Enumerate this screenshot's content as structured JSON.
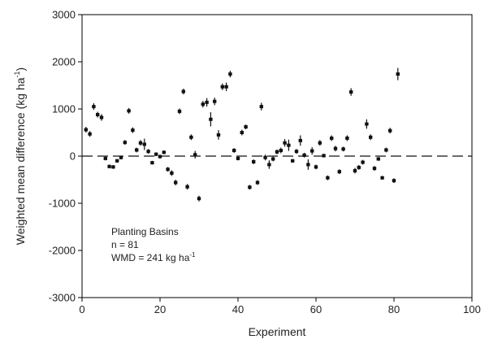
{
  "chart_data": {
    "type": "scatter",
    "xlabel": "Experiment",
    "ylabel": "Weighted mean difference (kg ha",
    "ylabel_sup": "-1",
    "ylabel_end": ")",
    "xlim": [
      0,
      100
    ],
    "ylim": [
      -3000,
      3000
    ],
    "x_ticks": [
      0,
      20,
      40,
      60,
      80,
      100
    ],
    "y_ticks": [
      -3000,
      -2000,
      -1000,
      0,
      1000,
      2000,
      3000
    ],
    "reference_line": {
      "y": 0,
      "style": "dashed"
    },
    "annotation": {
      "line1": "Planting Basins",
      "line2": "n = 81",
      "line3_prefix": "WMD = 241 kg ha",
      "line3_sup": "-1"
    },
    "points": [
      {
        "x": 1,
        "y": 560,
        "err": 60
      },
      {
        "x": 2,
        "y": 470,
        "err": 60
      },
      {
        "x": 3,
        "y": 1050,
        "err": 70
      },
      {
        "x": 4,
        "y": 880,
        "err": 60
      },
      {
        "x": 5,
        "y": 820,
        "err": 70
      },
      {
        "x": 6,
        "y": -50,
        "err": 40
      },
      {
        "x": 7,
        "y": -220,
        "err": 40
      },
      {
        "x": 8,
        "y": -230,
        "err": 40
      },
      {
        "x": 9,
        "y": -100,
        "err": 40
      },
      {
        "x": 10,
        "y": -30,
        "err": 40
      },
      {
        "x": 11,
        "y": 290,
        "err": 50
      },
      {
        "x": 12,
        "y": 960,
        "err": 60
      },
      {
        "x": 13,
        "y": 550,
        "err": 60
      },
      {
        "x": 14,
        "y": 130,
        "err": 50
      },
      {
        "x": 15,
        "y": 280,
        "err": 60
      },
      {
        "x": 16,
        "y": 250,
        "err": 120
      },
      {
        "x": 17,
        "y": 100,
        "err": 50
      },
      {
        "x": 18,
        "y": -140,
        "err": 40
      },
      {
        "x": 19,
        "y": 40,
        "err": 40
      },
      {
        "x": 20,
        "y": -10,
        "err": 40
      },
      {
        "x": 21,
        "y": 80,
        "err": 40
      },
      {
        "x": 22,
        "y": -280,
        "err": 50
      },
      {
        "x": 23,
        "y": -360,
        "err": 60
      },
      {
        "x": 24,
        "y": -560,
        "err": 60
      },
      {
        "x": 25,
        "y": 950,
        "err": 60
      },
      {
        "x": 26,
        "y": 1370,
        "err": 60
      },
      {
        "x": 27,
        "y": -650,
        "err": 60
      },
      {
        "x": 28,
        "y": 400,
        "err": 60
      },
      {
        "x": 29,
        "y": 30,
        "err": 80
      },
      {
        "x": 30,
        "y": -900,
        "err": 60
      },
      {
        "x": 31,
        "y": 1100,
        "err": 70
      },
      {
        "x": 32,
        "y": 1140,
        "err": 90
      },
      {
        "x": 33,
        "y": 780,
        "err": 150
      },
      {
        "x": 34,
        "y": 1160,
        "err": 80
      },
      {
        "x": 35,
        "y": 450,
        "err": 100
      },
      {
        "x": 36,
        "y": 1470,
        "err": 70
      },
      {
        "x": 37,
        "y": 1470,
        "err": 90
      },
      {
        "x": 38,
        "y": 1740,
        "err": 70
      },
      {
        "x": 39,
        "y": 120,
        "err": 50
      },
      {
        "x": 40,
        "y": -50,
        "err": 40
      },
      {
        "x": 41,
        "y": 500,
        "err": 60
      },
      {
        "x": 42,
        "y": 620,
        "err": 50
      },
      {
        "x": 43,
        "y": -660,
        "err": 50
      },
      {
        "x": 44,
        "y": -120,
        "err": 50
      },
      {
        "x": 45,
        "y": -560,
        "err": 50
      },
      {
        "x": 46,
        "y": 1050,
        "err": 80
      },
      {
        "x": 47,
        "y": -30,
        "err": 60
      },
      {
        "x": 48,
        "y": -180,
        "err": 90
      },
      {
        "x": 49,
        "y": -60,
        "err": 50
      },
      {
        "x": 50,
        "y": 90,
        "err": 50
      },
      {
        "x": 51,
        "y": 120,
        "err": 60
      },
      {
        "x": 52,
        "y": 280,
        "err": 80
      },
      {
        "x": 53,
        "y": 230,
        "err": 120
      },
      {
        "x": 54,
        "y": -100,
        "err": 40
      },
      {
        "x": 55,
        "y": 100,
        "err": 50
      },
      {
        "x": 56,
        "y": 330,
        "err": 110
      },
      {
        "x": 57,
        "y": 20,
        "err": 50
      },
      {
        "x": 58,
        "y": -180,
        "err": 110
      },
      {
        "x": 59,
        "y": 110,
        "err": 80
      },
      {
        "x": 60,
        "y": -230,
        "err": 50
      },
      {
        "x": 61,
        "y": 280,
        "err": 60
      },
      {
        "x": 62,
        "y": 10,
        "err": 40
      },
      {
        "x": 63,
        "y": -460,
        "err": 50
      },
      {
        "x": 64,
        "y": 380,
        "err": 60
      },
      {
        "x": 65,
        "y": 160,
        "err": 60
      },
      {
        "x": 66,
        "y": -330,
        "err": 50
      },
      {
        "x": 67,
        "y": 150,
        "err": 50
      },
      {
        "x": 68,
        "y": 380,
        "err": 60
      },
      {
        "x": 69,
        "y": 1360,
        "err": 80
      },
      {
        "x": 70,
        "y": -310,
        "err": 60
      },
      {
        "x": 71,
        "y": -240,
        "err": 50
      },
      {
        "x": 72,
        "y": -130,
        "err": 50
      },
      {
        "x": 73,
        "y": 680,
        "err": 100
      },
      {
        "x": 74,
        "y": 400,
        "err": 60
      },
      {
        "x": 75,
        "y": -260,
        "err": 50
      },
      {
        "x": 76,
        "y": -60,
        "err": 40
      },
      {
        "x": 77,
        "y": -460,
        "err": 40
      },
      {
        "x": 78,
        "y": 130,
        "err": 50
      },
      {
        "x": 79,
        "y": 540,
        "err": 60
      },
      {
        "x": 80,
        "y": -520,
        "err": 50
      },
      {
        "x": 81,
        "y": 1740,
        "err": 130
      }
    ]
  }
}
